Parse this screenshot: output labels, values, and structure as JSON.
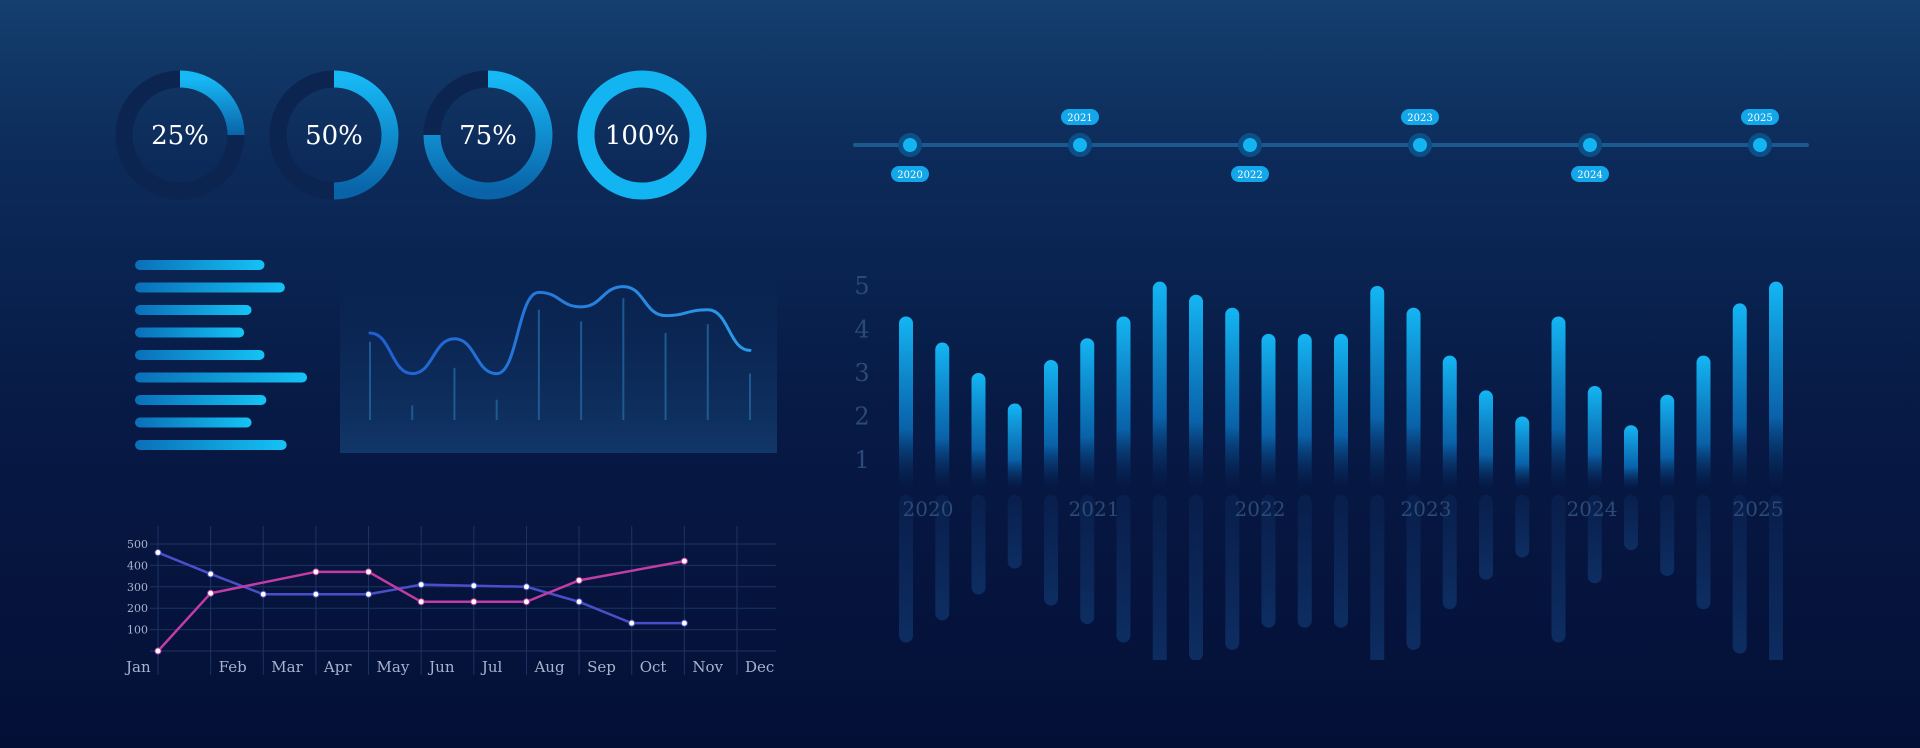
{
  "colors": {
    "accent": "#13b4f2",
    "accent_dark": "#0a5fa3",
    "ring_track": "#0b2450",
    "line_blue": "#4a4fc9",
    "line_pink": "#c23ca6",
    "axis_text": "#a7b3cf",
    "faded_text": "#2b4a78",
    "grid": "#1d3362"
  },
  "chart_data": [
    {
      "type": "donut",
      "items": [
        {
          "value": 25,
          "label": "25%"
        },
        {
          "value": 50,
          "label": "50%"
        },
        {
          "value": 75,
          "label": "75%"
        },
        {
          "value": 100,
          "label": "100%"
        }
      ]
    },
    {
      "type": "timeline",
      "points": [
        {
          "label": "2020",
          "position": "below"
        },
        {
          "label": "2021",
          "position": "above"
        },
        {
          "label": "2022",
          "position": "below"
        },
        {
          "label": "2023",
          "position": "above"
        },
        {
          "label": "2024",
          "position": "below"
        },
        {
          "label": "2025",
          "position": "above"
        }
      ]
    },
    {
      "type": "bar",
      "orientation": "horizontal",
      "values": [
        0.7,
        0.81,
        0.63,
        0.59,
        0.7,
        0.93,
        0.71,
        0.63,
        0.82
      ]
    },
    {
      "type": "line",
      "style": "smooth-curve-with-stems",
      "series": [
        {
          "values": [
            3.0,
            1.6,
            2.8,
            1.6,
            4.4,
            3.9,
            4.6,
            3.6,
            3.8,
            2.4
          ]
        }
      ],
      "stems": [
        2.7,
        0.5,
        1.8,
        0.7,
        3.8,
        3.4,
        4.2,
        3.0,
        3.3,
        1.6
      ]
    },
    {
      "type": "line",
      "categories": [
        "Jan",
        "Feb",
        "Mar",
        "Apr",
        "May",
        "Jun",
        "Jul",
        "Aug",
        "Sep",
        "Oct",
        "Nov",
        "Dec"
      ],
      "yticks": [
        100,
        200,
        300,
        400,
        500
      ],
      "ylim": [
        0,
        500
      ],
      "series": [
        {
          "color": "#4a4fc9",
          "values": [
            460,
            360,
            265,
            265,
            265,
            310,
            305,
            300,
            230,
            130,
            130,
            null
          ]
        },
        {
          "color": "#c23ca6",
          "values": [
            0,
            270,
            null,
            370,
            370,
            230,
            230,
            230,
            330,
            null,
            420,
            null
          ]
        }
      ]
    },
    {
      "type": "bar",
      "orientation": "vertical",
      "reflected": true,
      "yticks": [
        "1",
        "2",
        "3",
        "4",
        "5"
      ],
      "ylim": [
        1,
        5
      ],
      "xlabels": [
        "2020",
        "2021",
        "2022",
        "2023",
        "2024",
        "2025"
      ],
      "values": [
        4.3,
        3.7,
        3.0,
        2.3,
        3.3,
        3.8,
        4.3,
        5.1,
        4.8,
        4.5,
        3.9,
        3.9,
        3.9,
        5.0,
        4.5,
        3.4,
        2.6,
        2.0,
        4.3,
        2.7,
        1.8,
        2.5,
        3.4,
        4.6,
        5.1
      ]
    }
  ]
}
